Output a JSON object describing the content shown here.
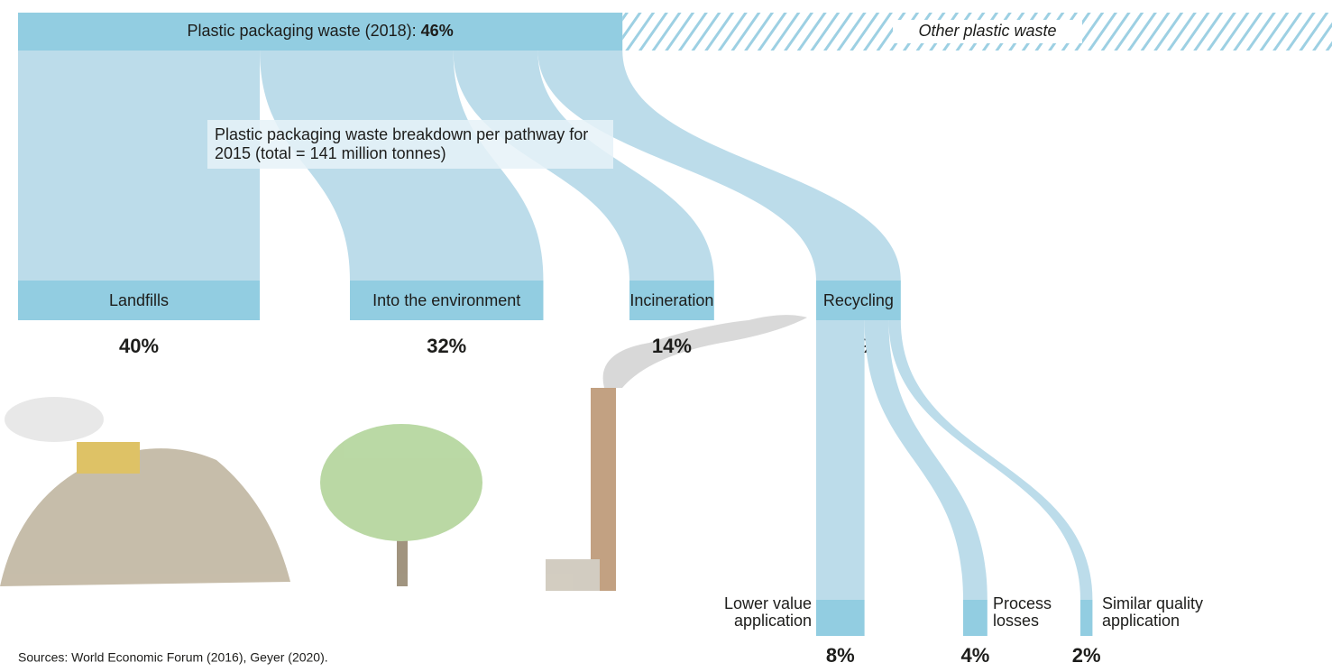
{
  "chart_data": {
    "type": "sankey",
    "source": {
      "name": "Plastic packaging waste (2018):",
      "value": 46,
      "value_label": "46%"
    },
    "other": "Other plastic waste",
    "subtitle": "Plastic packaging waste breakdown per pathway for 2015 (total = 141 million tonnes)",
    "nodes": [
      {
        "name": "Landfills",
        "value": 40,
        "value_label": "40%"
      },
      {
        "name": "Into the environment",
        "value": 32,
        "value_label": "32%"
      },
      {
        "name": "Incineration",
        "value": 14,
        "value_label": "14%"
      },
      {
        "name": "Recycling",
        "value": 14,
        "value_label": "14%"
      }
    ],
    "recycling": [
      {
        "name": "Lower value application",
        "value": 8,
        "value_label": "8%"
      },
      {
        "name": "Process losses",
        "value": 4,
        "value_label": "4%"
      },
      {
        "name": "Similar quality application",
        "value": 2,
        "value_label": "2%"
      }
    ],
    "colors": {
      "bar": "#92cde1",
      "flow": "#bcdcea",
      "stripe": "#9dd0e3"
    },
    "note": "Sources: World Economic Forum (2016), Geyer (2020)."
  }
}
